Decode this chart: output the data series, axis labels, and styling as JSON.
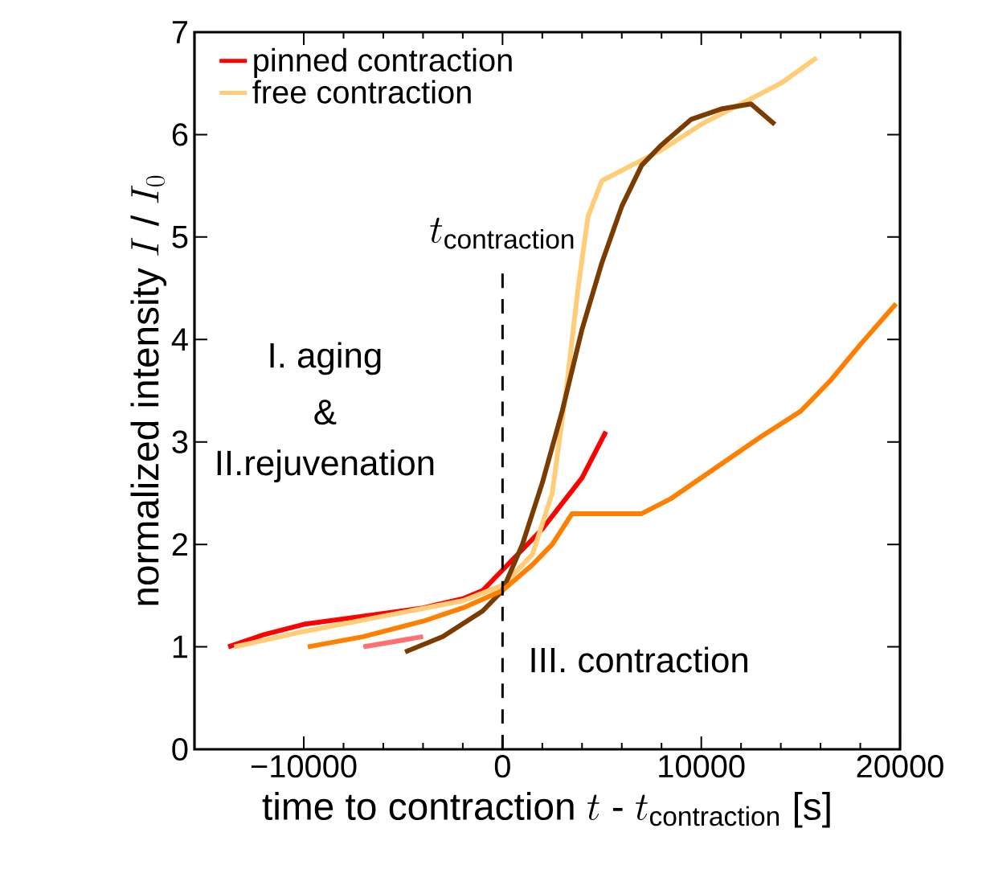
{
  "chart_data": {
    "type": "line",
    "xlabel": "\\text{time to contraction }t\\text{ - }t_{\\text{contraction}}\\text{ [s]}",
    "ylabel": "\\text{normalized intensity }I\\text{ / }I_{0}",
    "xlim": [
      -15500,
      20000
    ],
    "ylim": [
      0,
      7
    ],
    "xticks": [
      {
        "value": -10000,
        "label": "−10000"
      },
      0,
      10000,
      20000
    ],
    "yticks": [
      0,
      1,
      2,
      3,
      4,
      5,
      6,
      7
    ],
    "legend": "top left",
    "grid": false,
    "line_style": "solid",
    "marker": "none",
    "series": [
      {
        "color": "#ff7070",
        "x": [
          -7000,
          -5500,
          -4000
        ],
        "values": [
          1.0,
          1.05,
          1.1
        ]
      },
      {
        "name": "pinned contraction",
        "color": "#ff0000",
        "x": [
          -13800,
          -12000,
          -10000,
          -7000,
          -4000,
          -2000,
          -1000,
          0,
          1000,
          2000,
          3000,
          4000,
          5200
        ],
        "values": [
          1.0,
          1.12,
          1.22,
          1.3,
          1.38,
          1.47,
          1.55,
          1.75,
          1.95,
          2.15,
          2.4,
          2.65,
          3.1
        ]
      },
      {
        "name": "free contraction",
        "color": "#ffcc77",
        "x": [
          -13500,
          -10000,
          -6000,
          -2000,
          0,
          1500,
          2500,
          3200,
          3800,
          4300,
          5000,
          6500,
          8000,
          10000,
          12000,
          14000,
          15800
        ],
        "values": [
          1.0,
          1.15,
          1.3,
          1.45,
          1.6,
          1.9,
          2.5,
          3.5,
          4.5,
          5.2,
          5.55,
          5.7,
          5.85,
          6.1,
          6.3,
          6.5,
          6.75
        ]
      },
      {
        "color": "#7a3c00",
        "x": [
          -4900,
          -3000,
          -1000,
          0,
          1000,
          2000,
          3000,
          4000,
          5000,
          6000,
          7000,
          8000,
          9500,
          11000,
          12500,
          13700
        ],
        "values": [
          0.95,
          1.1,
          1.35,
          1.55,
          2.0,
          2.6,
          3.3,
          4.1,
          4.75,
          5.3,
          5.7,
          5.9,
          6.15,
          6.25,
          6.3,
          6.1
        ]
      },
      {
        "color": "#ff8000",
        "x": [
          -9800,
          -7000,
          -4000,
          -2000,
          0,
          1500,
          2500,
          3500,
          4500,
          6000,
          7000,
          8500,
          10000,
          11500,
          13000,
          15000,
          16500,
          18000,
          19800
        ],
        "values": [
          1.0,
          1.1,
          1.25,
          1.38,
          1.55,
          1.8,
          2.0,
          2.3,
          2.3,
          2.3,
          2.3,
          2.45,
          2.65,
          2.85,
          3.05,
          3.3,
          3.6,
          3.95,
          4.35
        ]
      }
    ],
    "ref_lines": [
      {
        "axis": "x",
        "value": 0,
        "label": "t_{\\mathrm{contraction}}",
        "line_style": "dashed",
        "color": "#000000"
      }
    ],
    "annotations": [
      "I. aging",
      "&",
      "II.rejuvenation",
      "III. contraction"
    ]
  }
}
